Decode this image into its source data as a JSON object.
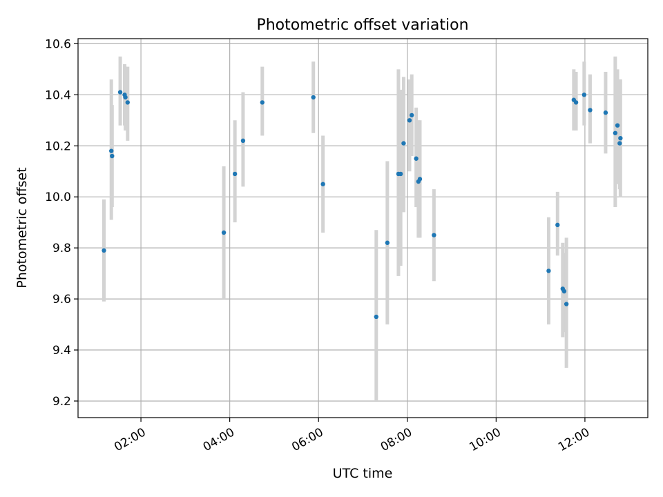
{
  "chart_data": {
    "type": "scatter",
    "title": "Photometric offset variation",
    "xlabel": "UTC time",
    "ylabel": "Photometric offset",
    "x_unit": "hours UTC",
    "xlim": [
      "00:35",
      "13:25"
    ],
    "ylim": [
      9.135,
      10.62
    ],
    "x_ticks": [
      "02:00",
      "04:00",
      "06:00",
      "08:00",
      "10:00",
      "12:00"
    ],
    "y_ticks": [
      "9.2",
      "9.4",
      "9.6",
      "9.8",
      "10.0",
      "10.2",
      "10.4",
      "10.6"
    ],
    "grid": true,
    "point_color": "#1f77b4",
    "errorbar_color": "#d3d3d3",
    "points": [
      {
        "time": "01:10",
        "offset": 9.79,
        "lower": 9.59,
        "upper": 9.99
      },
      {
        "time": "01:20",
        "offset": 10.18,
        "lower": 9.91,
        "upper": 10.46
      },
      {
        "time": "01:21",
        "offset": 10.16,
        "lower": 9.96,
        "upper": 10.36
      },
      {
        "time": "01:32",
        "offset": 10.41,
        "lower": 10.28,
        "upper": 10.55
      },
      {
        "time": "01:38",
        "offset": 10.4,
        "lower": 10.28,
        "upper": 10.52
      },
      {
        "time": "01:39",
        "offset": 10.39,
        "lower": 10.26,
        "upper": 10.51
      },
      {
        "time": "01:42",
        "offset": 10.37,
        "lower": 10.22,
        "upper": 10.51
      },
      {
        "time": "03:52",
        "offset": 9.86,
        "lower": 9.6,
        "upper": 10.12
      },
      {
        "time": "04:07",
        "offset": 10.09,
        "lower": 9.9,
        "upper": 10.3
      },
      {
        "time": "04:18",
        "offset": 10.22,
        "lower": 10.04,
        "upper": 10.41
      },
      {
        "time": "04:44",
        "offset": 10.37,
        "lower": 10.24,
        "upper": 10.51
      },
      {
        "time": "05:53",
        "offset": 10.39,
        "lower": 10.25,
        "upper": 10.53
      },
      {
        "time": "06:06",
        "offset": 10.05,
        "lower": 9.86,
        "upper": 10.24
      },
      {
        "time": "07:18",
        "offset": 9.53,
        "lower": 9.2,
        "upper": 9.87
      },
      {
        "time": "07:33",
        "offset": 9.82,
        "lower": 9.5,
        "upper": 10.14
      },
      {
        "time": "07:48",
        "offset": 10.09,
        "lower": 9.69,
        "upper": 10.5
      },
      {
        "time": "07:51",
        "offset": 10.09,
        "lower": 9.73,
        "upper": 10.42
      },
      {
        "time": "07:55",
        "offset": 10.21,
        "lower": 9.94,
        "upper": 10.47
      },
      {
        "time": "08:03",
        "offset": 10.3,
        "lower": 10.1,
        "upper": 10.46
      },
      {
        "time": "08:06",
        "offset": 10.32,
        "lower": 10.16,
        "upper": 10.48
      },
      {
        "time": "08:12",
        "offset": 10.15,
        "lower": 9.96,
        "upper": 10.35
      },
      {
        "time": "08:15",
        "offset": 10.06,
        "lower": 9.84,
        "upper": 10.3
      },
      {
        "time": "08:17",
        "offset": 10.07,
        "lower": 9.84,
        "upper": 10.3
      },
      {
        "time": "08:36",
        "offset": 9.85,
        "lower": 9.67,
        "upper": 10.03
      },
      {
        "time": "11:11",
        "offset": 9.71,
        "lower": 9.5,
        "upper": 9.92
      },
      {
        "time": "11:23",
        "offset": 9.89,
        "lower": 9.77,
        "upper": 10.02
      },
      {
        "time": "11:30",
        "offset": 9.64,
        "lower": 9.45,
        "upper": 9.82
      },
      {
        "time": "11:32",
        "offset": 9.63,
        "lower": 9.47,
        "upper": 9.78
      },
      {
        "time": "11:35",
        "offset": 9.58,
        "lower": 9.33,
        "upper": 9.84
      },
      {
        "time": "11:45",
        "offset": 10.38,
        "lower": 10.26,
        "upper": 10.5
      },
      {
        "time": "11:48",
        "offset": 10.37,
        "lower": 10.26,
        "upper": 10.49
      },
      {
        "time": "11:59",
        "offset": 10.4,
        "lower": 10.28,
        "upper": 10.53
      },
      {
        "time": "12:07",
        "offset": 10.34,
        "lower": 10.21,
        "upper": 10.48
      },
      {
        "time": "12:28",
        "offset": 10.33,
        "lower": 10.17,
        "upper": 10.49
      },
      {
        "time": "12:41",
        "offset": 10.25,
        "lower": 9.96,
        "upper": 10.55
      },
      {
        "time": "12:44",
        "offset": 10.28,
        "lower": 10.05,
        "upper": 10.5
      },
      {
        "time": "12:47",
        "offset": 10.21,
        "lower": 10.03,
        "upper": 10.46
      },
      {
        "time": "12:48",
        "offset": 10.23,
        "lower": 10.0,
        "upper": 10.46
      }
    ]
  }
}
